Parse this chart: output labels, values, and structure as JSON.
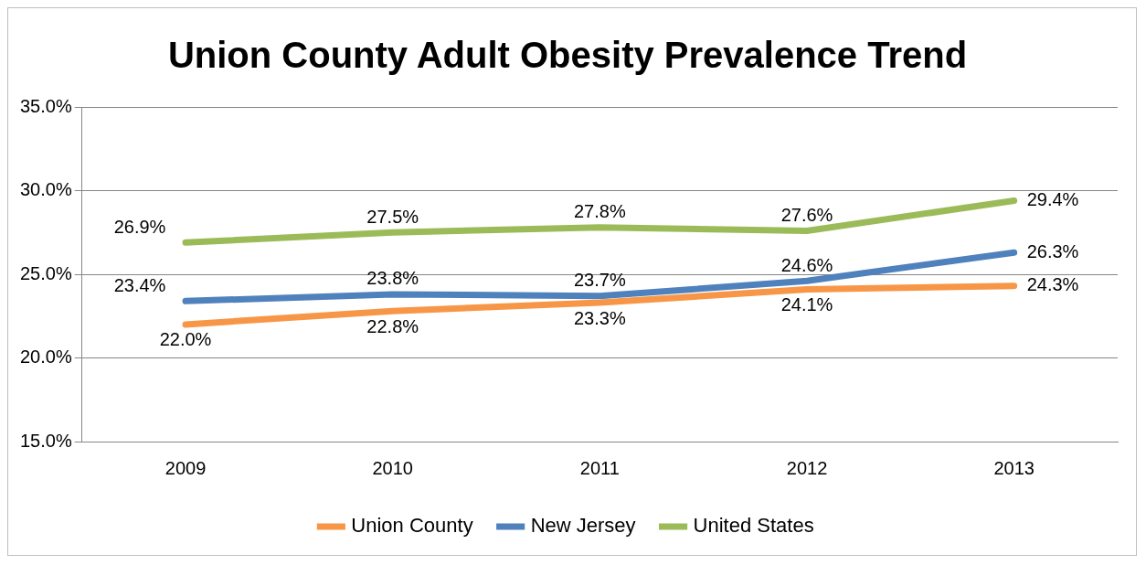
{
  "chart_data": {
    "type": "line",
    "title": "Union County Adult Obesity Prevalence Trend",
    "categories": [
      "2009",
      "2010",
      "2011",
      "2012",
      "2013"
    ],
    "series": [
      {
        "name": "Union County",
        "color": "#f79646",
        "values": [
          22.0,
          22.8,
          23.3,
          24.1,
          24.3
        ],
        "value_labels": [
          "22.0%",
          "22.8%",
          "23.3%",
          "24.1%",
          "24.3%"
        ]
      },
      {
        "name": "New Jersey",
        "color": "#4f81bd",
        "values": [
          23.4,
          23.8,
          23.7,
          24.6,
          26.3
        ],
        "value_labels": [
          "23.4%",
          "23.8%",
          "23.7%",
          "24.6%",
          "26.3%"
        ]
      },
      {
        "name": "United States",
        "color": "#9bbb59",
        "values": [
          26.9,
          27.5,
          27.8,
          27.6,
          29.4
        ],
        "value_labels": [
          "26.9%",
          "27.5%",
          "27.8%",
          "27.6%",
          "29.4%"
        ]
      }
    ],
    "ylim": [
      15,
      35
    ],
    "yticks": [
      {
        "value": 15,
        "label": "15.0%"
      },
      {
        "value": 20,
        "label": "20.0%"
      },
      {
        "value": 25,
        "label": "25.0%"
      },
      {
        "value": 30,
        "label": "30.0%"
      },
      {
        "value": 35,
        "label": "35.0%"
      }
    ],
    "grid": "y",
    "legend": "bottom",
    "marker": "none",
    "line_style": "solid"
  }
}
